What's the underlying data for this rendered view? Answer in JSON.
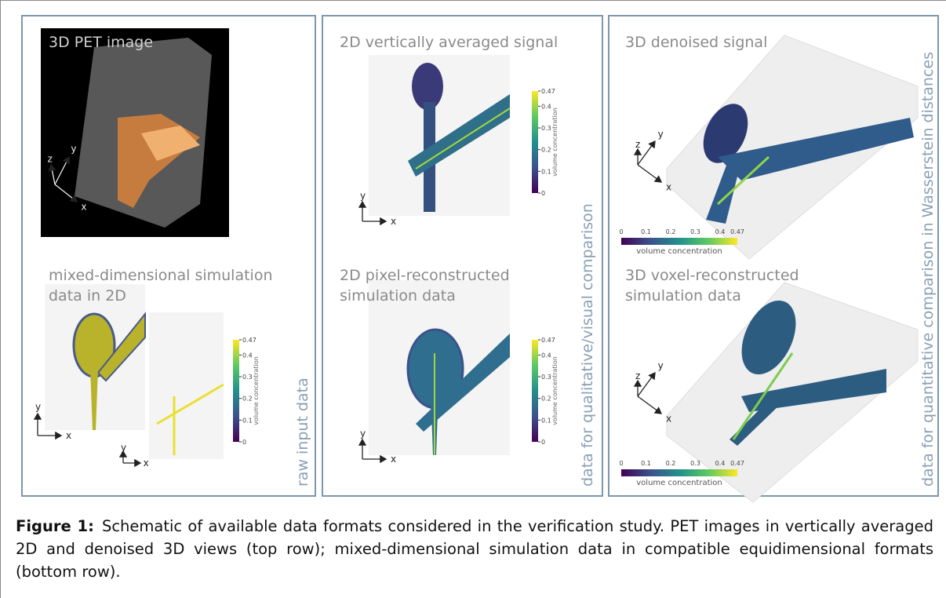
{
  "figure": {
    "panels": [
      {
        "label": [
          "3D PET image"
        ]
      },
      {
        "label": [
          "2D vertically averaged signal"
        ]
      },
      {
        "label": [
          "3D denoised signal"
        ]
      },
      {
        "label": [
          "mixed-dimensional simulation",
          "data in 2D"
        ]
      },
      {
        "label": [
          "2D pixel-reconstructed",
          "simulation data"
        ]
      },
      {
        "label": [
          "3D voxel-reconstructed",
          "simulation data"
        ]
      }
    ],
    "columns": [
      "raw input data",
      "data for qualitative/visual comparison",
      "data for quantitative comparison in Wasserstein distances"
    ],
    "colorbar": {
      "title": "volume concentration",
      "ticks": [
        "0",
        "0.1",
        "0.2",
        "0.3",
        "0.4",
        "0.47"
      ]
    },
    "axes": {
      "x": "x",
      "y": "y",
      "z": "z"
    }
  },
  "caption": {
    "label": "Figure 1:",
    "text": "Schematic of available data formats considered in the verification study.  PET images in vertically averaged 2D and denoised 3D views (top row); mixed-dimensional simulation data in compatible equidimensional formats (bottom row)."
  }
}
